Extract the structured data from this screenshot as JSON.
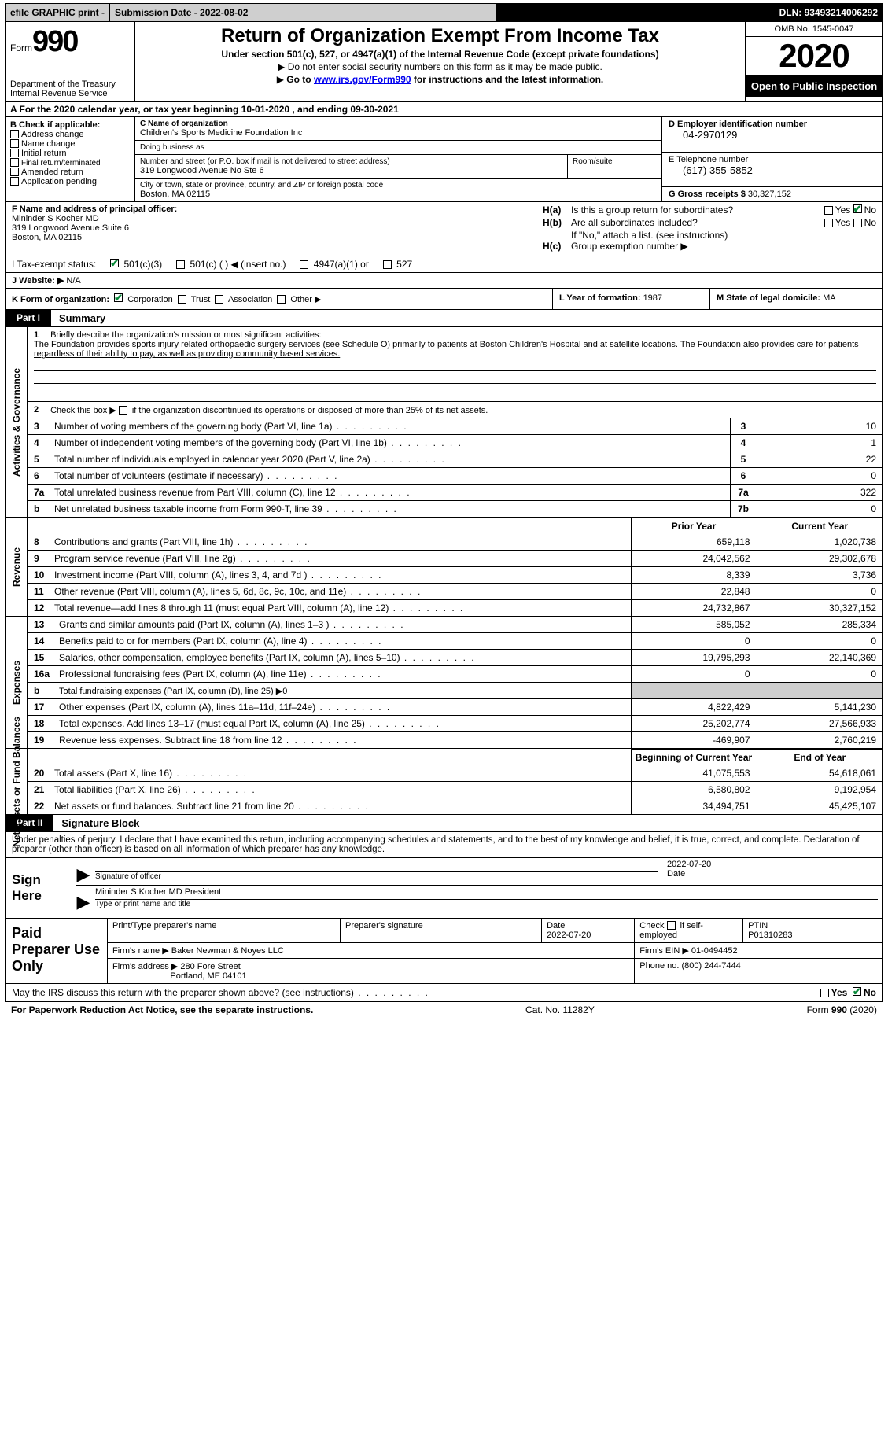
{
  "topbar": {
    "efile": "efile GRAPHIC print -",
    "subdate": "Submission Date - 2022-08-02",
    "dln": "DLN: 93493214006292"
  },
  "header": {
    "form_word": "Form",
    "form_num": "990",
    "dept": "Department of the Treasury",
    "irs": "Internal Revenue Service",
    "title": "Return of Organization Exempt From Income Tax",
    "sub": "Under section 501(c), 527, or 4947(a)(1) of the Internal Revenue Code (except private foundations)",
    "line1": "Do not enter social security numbers on this form as it may be made public.",
    "line2_pre": "Go to ",
    "line2_link": "www.irs.gov/Form990",
    "line2_post": " for instructions and the latest information.",
    "omb": "OMB No. 1545-0047",
    "year": "2020",
    "open": "Open to Public Inspection"
  },
  "row_a": {
    "pre": "A For the 2020 calendar year, or tax year beginning ",
    "begin": "10-01-2020",
    "mid": "    , and ending ",
    "end": "09-30-2021"
  },
  "col_b": {
    "lbl": "B Check if applicable:",
    "items": [
      "Address change",
      "Name change",
      "Initial return",
      "Final return/terminated",
      "Amended return",
      "Application pending"
    ]
  },
  "col_c": {
    "name_lbl": "C Name of organization",
    "name": "Children's Sports Medicine Foundation Inc",
    "dba_lbl": "Doing business as",
    "dba": "",
    "street_lbl": "Number and street (or P.O. box if mail is not delivered to street address)",
    "street": "319 Longwood Avenue No Ste 6",
    "room_lbl": "Room/suite",
    "city_lbl": "City or town, state or province, country, and ZIP or foreign postal code",
    "city": "Boston, MA   02115"
  },
  "col_d": {
    "ein_lbl": "D Employer identification number",
    "ein": "04-2970129",
    "tel_lbl": "E Telephone number",
    "tel": "(617) 355-5852",
    "gross_lbl": "G Gross receipts $ ",
    "gross": "30,327,152"
  },
  "col_f": {
    "lbl": "F Name and address of principal officer:",
    "name": "Mininder S Kocher MD",
    "addr1": "319 Longwood Avenue Suite 6",
    "addr2": "Boston, MA   02115"
  },
  "col_h": {
    "a_k": "H(a)",
    "a_t": "Is this a group return for subordinates?",
    "a_yes": "Yes",
    "a_no": "No",
    "b_k": "H(b)",
    "b_t": "Are all subordinates included?",
    "b_yes": "Yes",
    "b_no": "No",
    "b_note": "If \"No,\" attach a list. (see instructions)",
    "c_k": "H(c)",
    "c_t": "Group exemption number ▶"
  },
  "row_i": {
    "lbl": "I    Tax-exempt status:",
    "o1": "501(c)(3)",
    "o2": "501(c) (  ) ◀ (insert no.)",
    "o3": "4947(a)(1) or",
    "o4": "527"
  },
  "row_j": {
    "lbl": "J    Website: ▶",
    "val": "  N/A"
  },
  "row_k": {
    "lbl": "K Form of organization:",
    "o1": "Corporation",
    "o2": "Trust",
    "o3": "Association",
    "o4": "Other ▶"
  },
  "row_l": {
    "lbl": "L Year of formation: ",
    "val": "1987"
  },
  "row_m": {
    "lbl": "M State of legal domicile: ",
    "val": "MA"
  },
  "part1": {
    "tag": "Part I",
    "ttl": "Summary"
  },
  "side_labels": {
    "ag": "Activities & Governance",
    "rev": "Revenue",
    "exp": "Expenses",
    "na": "Net Assets or Fund Balances"
  },
  "q1": {
    "n": "1",
    "lead": "Briefly describe the organization's mission or most significant activities:",
    "text": "The Foundation provides sports injury related orthopaedic surgery services (see Schedule O) primarily to patients at Boston Children's Hospital and at satellite locations. The Foundation also provides care for patients regardless of their ability to pay, as well as providing community based services."
  },
  "q2": {
    "n": "2",
    "t": "Check this box ▶",
    "t2": " if the organization discontinued its operations or disposed of more than 25% of its net assets."
  },
  "ag_lines": [
    {
      "n": "3",
      "t": "Number of voting members of the governing body (Part VI, line 1a)",
      "box": "3",
      "v": "10"
    },
    {
      "n": "4",
      "t": "Number of independent voting members of the governing body (Part VI, line 1b)",
      "box": "4",
      "v": "1"
    },
    {
      "n": "5",
      "t": "Total number of individuals employed in calendar year 2020 (Part V, line 2a)",
      "box": "5",
      "v": "22"
    },
    {
      "n": "6",
      "t": "Total number of volunteers (estimate if necessary)",
      "box": "6",
      "v": "0"
    },
    {
      "n": "7a",
      "t": "Total unrelated business revenue from Part VIII, column (C), line 12",
      "box": "7a",
      "v": "322"
    },
    {
      "n": "b",
      "t": "Net unrelated business taxable income from Form 990-T, line 39",
      "box": "7b",
      "v": "0"
    }
  ],
  "cols": {
    "prior": "Prior Year",
    "current": "Current Year",
    "boc": "Beginning of Current Year",
    "eoy": "End of Year"
  },
  "rev_lines": [
    {
      "n": "8",
      "t": "Contributions and grants (Part VIII, line 1h)",
      "p": "659,118",
      "c": "1,020,738"
    },
    {
      "n": "9",
      "t": "Program service revenue (Part VIII, line 2g)",
      "p": "24,042,562",
      "c": "29,302,678"
    },
    {
      "n": "10",
      "t": "Investment income (Part VIII, column (A), lines 3, 4, and 7d )",
      "p": "8,339",
      "c": "3,736"
    },
    {
      "n": "11",
      "t": "Other revenue (Part VIII, column (A), lines 5, 6d, 8c, 9c, 10c, and 11e)",
      "p": "22,848",
      "c": "0"
    },
    {
      "n": "12",
      "t": "Total revenue—add lines 8 through 11 (must equal Part VIII, column (A), line 12)",
      "p": "24,732,867",
      "c": "30,327,152"
    }
  ],
  "exp_lines": [
    {
      "n": "13",
      "t": "Grants and similar amounts paid (Part IX, column (A), lines 1–3 )",
      "p": "585,052",
      "c": "285,334"
    },
    {
      "n": "14",
      "t": "Benefits paid to or for members (Part IX, column (A), line 4)",
      "p": "0",
      "c": "0"
    },
    {
      "n": "15",
      "t": "Salaries, other compensation, employee benefits (Part IX, column (A), lines 5–10)",
      "p": "19,795,293",
      "c": "22,140,369"
    },
    {
      "n": "16a",
      "t": "Professional fundraising fees (Part IX, column (A), line 11e)",
      "p": "0",
      "c": "0"
    },
    {
      "n": "b",
      "t": "Total fundraising expenses (Part IX, column (D), line 25) ▶0",
      "grey": true
    },
    {
      "n": "17",
      "t": "Other expenses (Part IX, column (A), lines 11a–11d, 11f–24e)",
      "p": "4,822,429",
      "c": "5,141,230"
    },
    {
      "n": "18",
      "t": "Total expenses. Add lines 13–17 (must equal Part IX, column (A), line 25)",
      "p": "25,202,774",
      "c": "27,566,933"
    },
    {
      "n": "19",
      "t": "Revenue less expenses. Subtract line 18 from line 12",
      "p": "-469,907",
      "c": "2,760,219"
    }
  ],
  "na_lines": [
    {
      "n": "20",
      "t": "Total assets (Part X, line 16)",
      "p": "41,075,553",
      "c": "54,618,061"
    },
    {
      "n": "21",
      "t": "Total liabilities (Part X, line 26)",
      "p": "6,580,802",
      "c": "9,192,954"
    },
    {
      "n": "22",
      "t": "Net assets or fund balances. Subtract line 21 from line 20",
      "p": "34,494,751",
      "c": "45,425,107"
    }
  ],
  "part2": {
    "tag": "Part II",
    "ttl": "Signature Block"
  },
  "sig_decl": "Under penalties of perjury, I declare that I have examined this return, including accompanying schedules and statements, and to the best of my knowledge and belief, it is true, correct, and complete. Declaration of preparer (other than officer) is based on all information of which preparer has any knowledge.",
  "sign": {
    "here": "Sign Here",
    "sig_lbl": "Signature of officer",
    "date_lbl": "Date",
    "date_val": "2022-07-20",
    "name": "Mininder S Kocher MD  President",
    "name_lbl": "Type or print name and title"
  },
  "paid": {
    "lbl": "Paid Preparer Use Only",
    "h1": "Print/Type preparer's name",
    "h2": "Preparer's signature",
    "h3_l": "Date",
    "h3_v": "2022-07-20",
    "h4_l": "Check",
    "h4_t": "if self-employed",
    "h5_l": "PTIN",
    "h5_v": "P01310283",
    "firm_l": "Firm's name    ▶",
    "firm_v": "Baker Newman & Noyes LLC",
    "ein_l": "Firm's EIN ▶",
    "ein_v": "01-0494452",
    "addr_l": "Firm's address ▶",
    "addr_v1": "280 Fore Street",
    "addr_v2": "Portland, ME   04101",
    "ph_l": "Phone no. ",
    "ph_v": "(800) 244-7444"
  },
  "irs_q": {
    "t": "May the IRS discuss this return with the preparer shown above? (see instructions)",
    "yes": "Yes",
    "no": "No"
  },
  "footer": {
    "l": "For Paperwork Reduction Act Notice, see the separate instructions.",
    "m": "Cat. No. 11282Y",
    "r": "Form 990 (2020)"
  }
}
